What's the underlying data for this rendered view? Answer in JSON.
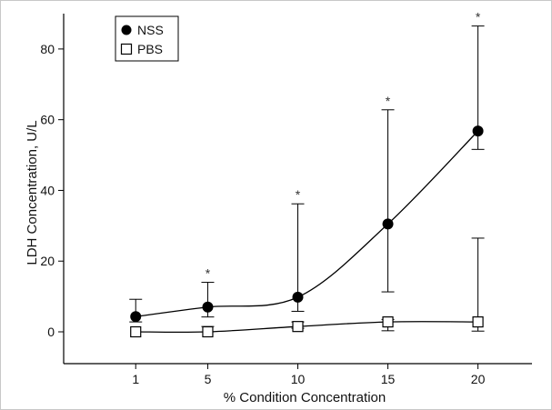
{
  "chart_data": {
    "type": "line",
    "title": "",
    "xlabel": "% Condition Concentration",
    "ylabel": "LDH Concentration, U/L",
    "x": [
      1,
      5,
      10,
      15,
      20
    ],
    "x_ticks": [
      "1",
      "5",
      "10",
      "15",
      "20"
    ],
    "y_ticks": [
      "0",
      "20",
      "40",
      "60",
      "80"
    ],
    "ylim": [
      -9,
      90
    ],
    "legend_position": "top-left",
    "series": [
      {
        "name": "NSS",
        "marker": "filled-circle",
        "color": "#000000",
        "values": [
          4.3,
          7.0,
          9.8,
          30.5,
          56.8
        ],
        "error_upper": [
          9.2,
          14.0,
          36.2,
          62.8,
          86.5
        ],
        "error_lower": [
          2.8,
          4.2,
          5.8,
          11.3,
          51.6
        ],
        "significance": [
          "",
          "*",
          "*",
          "*",
          "*"
        ]
      },
      {
        "name": "PBS",
        "marker": "open-square",
        "color": "#000000",
        "values": [
          0.0,
          0.0,
          1.5,
          2.8,
          2.8
        ],
        "error_upper": [
          0.0,
          1.5,
          2.8,
          3.5,
          26.5
        ],
        "error_lower": [
          0.0,
          0.0,
          1.0,
          0.3,
          0.2
        ],
        "significance": [
          "",
          "",
          "",
          "",
          ""
        ]
      }
    ]
  }
}
